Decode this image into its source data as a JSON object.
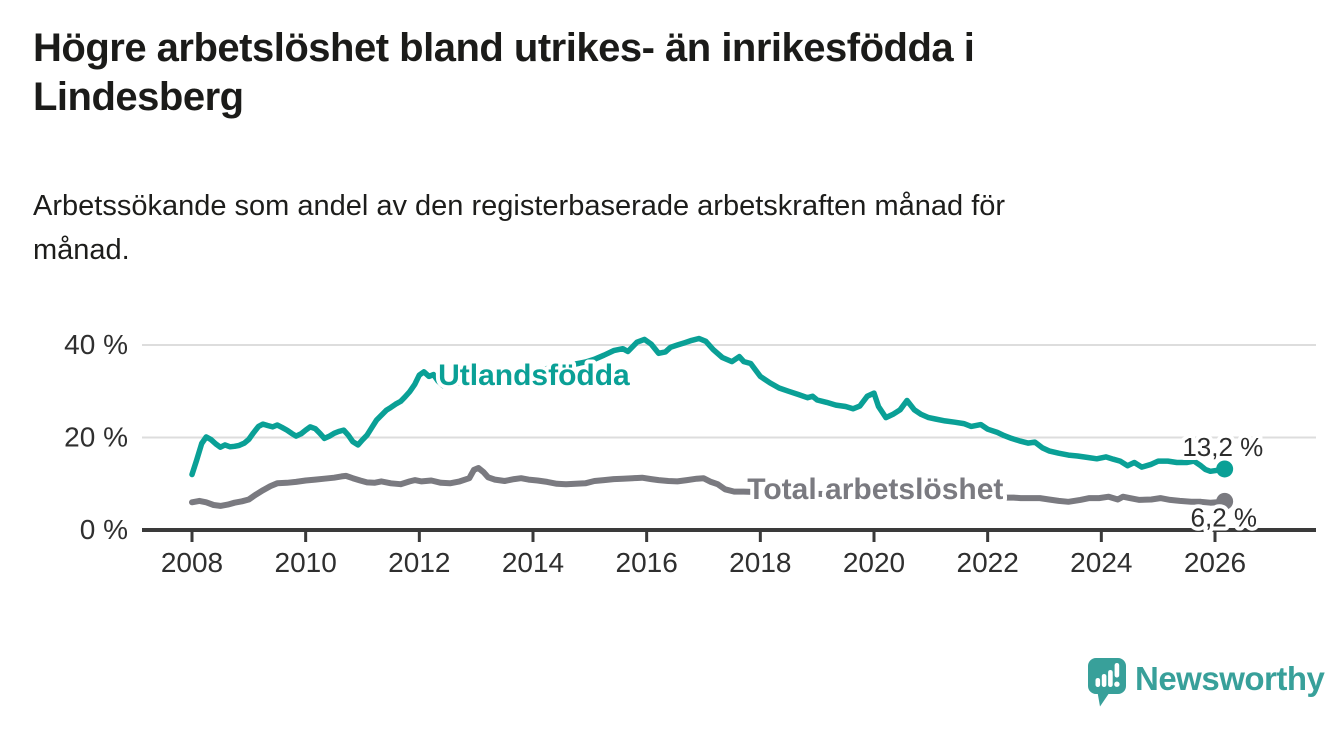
{
  "header": {
    "title_line1": "Högre arbetslöshet bland utrikes- än inrikesfödda i",
    "title_line2": "Lindesberg",
    "subtitle_line1": "Arbetssökande som andel av den registerbaserade arbetskraften månad för",
    "subtitle_line2": "månad."
  },
  "logo": {
    "text": "Newsworthy",
    "icon": "bar-chart-bubble-icon",
    "color": "#38a09a"
  },
  "colors": {
    "background": "#ffffff",
    "title": "#1b1b19",
    "axis": "#3a3a3a",
    "gridline": "#dddddd",
    "teal": "#0aa096",
    "gray": "#7a7a80",
    "end_label": "#2d2d2d"
  },
  "chart_data": {
    "type": "line",
    "title": "Högre arbetslöshet bland utrikes- än inrikesfödda i Lindesberg",
    "subtitle": "Arbetssökande som andel av den registerbaserade arbetskraften månad för månad.",
    "xlabel": "",
    "ylabel": "",
    "grid": "horizontal",
    "legend_position": "inline-labels",
    "x_axis": {
      "range": [
        2007.12,
        2027.78
      ],
      "ticks": [
        {
          "value": 2008,
          "label": "2008"
        },
        {
          "value": 2010,
          "label": "2010"
        },
        {
          "value": 2012,
          "label": "2012"
        },
        {
          "value": 2014,
          "label": "2014"
        },
        {
          "value": 2016,
          "label": "2016"
        },
        {
          "value": 2018,
          "label": "2018"
        },
        {
          "value": 2020,
          "label": "2020"
        },
        {
          "value": 2022,
          "label": "2022"
        },
        {
          "value": 2024,
          "label": "2024"
        },
        {
          "value": 2026,
          "label": "2026"
        }
      ]
    },
    "y_axis": {
      "range": [
        0,
        44
      ],
      "unit": "%",
      "ticks": [
        {
          "value": 0,
          "label": "0 %"
        },
        {
          "value": 20,
          "label": "20 %"
        },
        {
          "value": 40,
          "label": "40 %"
        }
      ]
    },
    "series": [
      {
        "name": "Utlandsfödda",
        "color": "#0aa096",
        "line_width": 5.5,
        "end_value": "13,2 %",
        "series_label": {
          "text": "Utlandsfödda",
          "x": 2012.33,
          "y": 31.35,
          "anchor": "start"
        },
        "end_label": {
          "text": "13,2 %",
          "x": 2026.85,
          "y": 16.0,
          "anchor": "end"
        },
        "points": [
          [
            2008.0,
            12.0
          ],
          [
            2008.08,
            15.0
          ],
          [
            2008.17,
            18.7
          ],
          [
            2008.25,
            20.1
          ],
          [
            2008.33,
            19.6
          ],
          [
            2008.42,
            18.6
          ],
          [
            2008.5,
            17.9
          ],
          [
            2008.58,
            18.4
          ],
          [
            2008.67,
            18.0
          ],
          [
            2008.75,
            18.1
          ],
          [
            2008.83,
            18.3
          ],
          [
            2008.92,
            18.8
          ],
          [
            2009.0,
            19.6
          ],
          [
            2009.08,
            21.0
          ],
          [
            2009.17,
            22.4
          ],
          [
            2009.25,
            22.9
          ],
          [
            2009.33,
            22.6
          ],
          [
            2009.42,
            22.3
          ],
          [
            2009.5,
            22.7
          ],
          [
            2009.58,
            22.2
          ],
          [
            2009.67,
            21.6
          ],
          [
            2009.75,
            20.9
          ],
          [
            2009.83,
            20.3
          ],
          [
            2009.92,
            20.8
          ],
          [
            2010.0,
            21.6
          ],
          [
            2010.08,
            22.3
          ],
          [
            2010.17,
            21.9
          ],
          [
            2010.25,
            20.9
          ],
          [
            2010.33,
            19.8
          ],
          [
            2010.42,
            20.3
          ],
          [
            2010.5,
            20.9
          ],
          [
            2010.58,
            21.3
          ],
          [
            2010.67,
            21.6
          ],
          [
            2010.75,
            20.5
          ],
          [
            2010.83,
            19.1
          ],
          [
            2010.92,
            18.4
          ],
          [
            2011.0,
            19.5
          ],
          [
            2011.08,
            20.5
          ],
          [
            2011.17,
            22.3
          ],
          [
            2011.25,
            23.8
          ],
          [
            2011.33,
            24.8
          ],
          [
            2011.42,
            25.9
          ],
          [
            2011.5,
            26.5
          ],
          [
            2011.58,
            27.2
          ],
          [
            2011.67,
            27.8
          ],
          [
            2011.75,
            28.8
          ],
          [
            2011.83,
            29.9
          ],
          [
            2011.92,
            31.5
          ],
          [
            2012.0,
            33.5
          ],
          [
            2012.08,
            34.2
          ],
          [
            2012.17,
            33.2
          ],
          [
            2012.25,
            33.6
          ],
          [
            2012.33,
            32.2
          ],
          [
            2012.42,
            31.2
          ],
          [
            2012.58,
            31.6
          ],
          [
            2012.75,
            31.9
          ],
          [
            2012.92,
            32.3
          ],
          [
            2013.08,
            32.6
          ],
          [
            2013.25,
            32.9
          ],
          [
            2013.42,
            33.2
          ],
          [
            2013.58,
            33.5
          ],
          [
            2013.75,
            33.9
          ],
          [
            2013.92,
            34.2
          ],
          [
            2014.08,
            34.5
          ],
          [
            2014.25,
            34.9
          ],
          [
            2014.42,
            35.2
          ],
          [
            2014.58,
            35.5
          ],
          [
            2014.75,
            35.9
          ],
          [
            2014.92,
            36.3
          ],
          [
            2015.08,
            36.9
          ],
          [
            2015.25,
            37.8
          ],
          [
            2015.42,
            38.8
          ],
          [
            2015.58,
            39.2
          ],
          [
            2015.67,
            38.6
          ],
          [
            2015.83,
            40.6
          ],
          [
            2015.96,
            41.2
          ],
          [
            2016.08,
            40.2
          ],
          [
            2016.21,
            38.2
          ],
          [
            2016.33,
            38.5
          ],
          [
            2016.42,
            39.5
          ],
          [
            2016.54,
            40.0
          ],
          [
            2016.67,
            40.5
          ],
          [
            2016.79,
            41.0
          ],
          [
            2016.92,
            41.4
          ],
          [
            2017.04,
            40.8
          ],
          [
            2017.17,
            39.0
          ],
          [
            2017.33,
            37.3
          ],
          [
            2017.5,
            36.4
          ],
          [
            2017.63,
            37.5
          ],
          [
            2017.71,
            36.4
          ],
          [
            2017.83,
            36.0
          ],
          [
            2017.92,
            34.5
          ],
          [
            2018.0,
            33.2
          ],
          [
            2018.17,
            31.8
          ],
          [
            2018.33,
            30.7
          ],
          [
            2018.5,
            30.0
          ],
          [
            2018.67,
            29.3
          ],
          [
            2018.83,
            28.6
          ],
          [
            2018.92,
            28.9
          ],
          [
            2019.0,
            28.1
          ],
          [
            2019.17,
            27.6
          ],
          [
            2019.33,
            27.0
          ],
          [
            2019.5,
            26.7
          ],
          [
            2019.63,
            26.2
          ],
          [
            2019.75,
            26.8
          ],
          [
            2019.88,
            28.9
          ],
          [
            2020.0,
            29.6
          ],
          [
            2020.08,
            26.7
          ],
          [
            2020.21,
            24.3
          ],
          [
            2020.33,
            25.0
          ],
          [
            2020.46,
            26.0
          ],
          [
            2020.58,
            28.0
          ],
          [
            2020.71,
            26.0
          ],
          [
            2020.83,
            25.0
          ],
          [
            2020.96,
            24.3
          ],
          [
            2021.08,
            24.0
          ],
          [
            2021.25,
            23.6
          ],
          [
            2021.42,
            23.3
          ],
          [
            2021.58,
            23.0
          ],
          [
            2021.71,
            22.4
          ],
          [
            2021.88,
            22.8
          ],
          [
            2022.0,
            21.8
          ],
          [
            2022.17,
            21.1
          ],
          [
            2022.29,
            20.4
          ],
          [
            2022.42,
            19.8
          ],
          [
            2022.58,
            19.2
          ],
          [
            2022.71,
            18.8
          ],
          [
            2022.83,
            19.0
          ],
          [
            2022.96,
            17.8
          ],
          [
            2023.08,
            17.1
          ],
          [
            2023.25,
            16.6
          ],
          [
            2023.42,
            16.2
          ],
          [
            2023.58,
            16.0
          ],
          [
            2023.75,
            15.7
          ],
          [
            2023.92,
            15.4
          ],
          [
            2024.08,
            15.8
          ],
          [
            2024.21,
            15.3
          ],
          [
            2024.33,
            14.9
          ],
          [
            2024.46,
            13.9
          ],
          [
            2024.58,
            14.6
          ],
          [
            2024.71,
            13.6
          ],
          [
            2024.88,
            14.2
          ],
          [
            2025.0,
            14.9
          ],
          [
            2025.17,
            14.9
          ],
          [
            2025.33,
            14.6
          ],
          [
            2025.5,
            14.6
          ],
          [
            2025.63,
            14.9
          ],
          [
            2025.75,
            13.9
          ],
          [
            2025.83,
            13.1
          ],
          [
            2025.92,
            12.7
          ],
          [
            2026.04,
            12.9
          ],
          [
            2026.17,
            13.2
          ]
        ]
      },
      {
        "name": "Total arbetslöshet",
        "color": "#7a7a80",
        "line_width": 6,
        "end_value": "6,2 %",
        "series_label": {
          "text": "Total arbetslöshet",
          "x": 2017.77,
          "y": 6.7,
          "anchor": "start"
        },
        "end_label": {
          "text": "6,2 %",
          "x": 2026.74,
          "y": 0.72,
          "anchor": "end"
        },
        "points": [
          [
            2008.0,
            6.0
          ],
          [
            2008.13,
            6.3
          ],
          [
            2008.25,
            6.0
          ],
          [
            2008.38,
            5.4
          ],
          [
            2008.5,
            5.2
          ],
          [
            2008.63,
            5.5
          ],
          [
            2008.75,
            5.9
          ],
          [
            2008.88,
            6.2
          ],
          [
            2009.0,
            6.6
          ],
          [
            2009.13,
            7.7
          ],
          [
            2009.25,
            8.6
          ],
          [
            2009.38,
            9.5
          ],
          [
            2009.5,
            10.1
          ],
          [
            2009.67,
            10.2
          ],
          [
            2009.83,
            10.4
          ],
          [
            2010.0,
            10.7
          ],
          [
            2010.17,
            10.9
          ],
          [
            2010.33,
            11.1
          ],
          [
            2010.5,
            11.3
          ],
          [
            2010.63,
            11.6
          ],
          [
            2010.71,
            11.7
          ],
          [
            2010.83,
            11.2
          ],
          [
            2010.96,
            10.7
          ],
          [
            2011.08,
            10.3
          ],
          [
            2011.21,
            10.2
          ],
          [
            2011.33,
            10.5
          ],
          [
            2011.5,
            10.1
          ],
          [
            2011.67,
            9.9
          ],
          [
            2011.83,
            10.5
          ],
          [
            2011.92,
            10.8
          ],
          [
            2012.04,
            10.5
          ],
          [
            2012.21,
            10.7
          ],
          [
            2012.38,
            10.2
          ],
          [
            2012.54,
            10.1
          ],
          [
            2012.71,
            10.5
          ],
          [
            2012.88,
            11.2
          ],
          [
            2012.96,
            13.0
          ],
          [
            2013.04,
            13.4
          ],
          [
            2013.13,
            12.5
          ],
          [
            2013.21,
            11.4
          ],
          [
            2013.33,
            10.9
          ],
          [
            2013.5,
            10.6
          ],
          [
            2013.67,
            11.0
          ],
          [
            2013.79,
            11.2
          ],
          [
            2013.92,
            10.9
          ],
          [
            2014.08,
            10.7
          ],
          [
            2014.25,
            10.4
          ],
          [
            2014.42,
            10.0
          ],
          [
            2014.58,
            9.9
          ],
          [
            2014.75,
            10.0
          ],
          [
            2014.92,
            10.1
          ],
          [
            2015.08,
            10.6
          ],
          [
            2015.25,
            10.8
          ],
          [
            2015.42,
            11.0
          ],
          [
            2015.58,
            11.1
          ],
          [
            2015.75,
            11.2
          ],
          [
            2015.92,
            11.3
          ],
          [
            2016.08,
            11.0
          ],
          [
            2016.21,
            10.8
          ],
          [
            2016.38,
            10.6
          ],
          [
            2016.54,
            10.5
          ],
          [
            2016.71,
            10.8
          ],
          [
            2016.88,
            11.1
          ],
          [
            2017.0,
            11.2
          ],
          [
            2017.13,
            10.4
          ],
          [
            2017.25,
            9.9
          ],
          [
            2017.38,
            8.8
          ],
          [
            2017.54,
            8.3
          ],
          [
            2017.71,
            8.3
          ],
          [
            2018.0,
            8.2
          ],
          [
            2018.5,
            8.0
          ],
          [
            2019.0,
            7.8
          ],
          [
            2019.5,
            7.7
          ],
          [
            2020.0,
            7.6
          ],
          [
            2020.5,
            7.5
          ],
          [
            2021.0,
            7.4
          ],
          [
            2021.5,
            7.2
          ],
          [
            2022.0,
            7.1
          ],
          [
            2022.33,
            7.0
          ],
          [
            2022.46,
            7.0
          ],
          [
            2022.58,
            6.9
          ],
          [
            2022.75,
            6.9
          ],
          [
            2022.92,
            6.9
          ],
          [
            2023.08,
            6.6
          ],
          [
            2023.25,
            6.3
          ],
          [
            2023.42,
            6.1
          ],
          [
            2023.63,
            6.5
          ],
          [
            2023.79,
            6.9
          ],
          [
            2023.96,
            6.9
          ],
          [
            2024.13,
            7.2
          ],
          [
            2024.29,
            6.6
          ],
          [
            2024.38,
            7.2
          ],
          [
            2024.5,
            6.9
          ],
          [
            2024.67,
            6.5
          ],
          [
            2024.88,
            6.6
          ],
          [
            2025.04,
            6.9
          ],
          [
            2025.21,
            6.5
          ],
          [
            2025.38,
            6.3
          ],
          [
            2025.58,
            6.1
          ],
          [
            2025.75,
            6.1
          ],
          [
            2025.92,
            5.9
          ],
          [
            2026.04,
            6.0
          ],
          [
            2026.17,
            6.2
          ]
        ]
      }
    ]
  }
}
